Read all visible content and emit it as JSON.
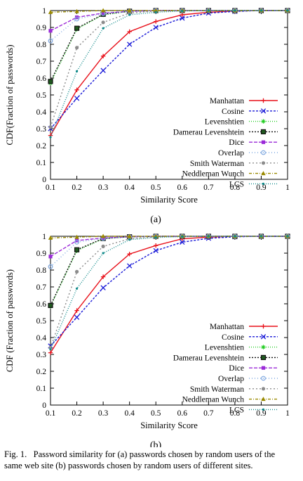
{
  "chart_data": [
    {
      "type": "line",
      "panel_label": "(a)",
      "xlabel": "Similarity Score",
      "ylabel": "CDF(Fraction of passwords)",
      "xlim": [
        0.1,
        1
      ],
      "ylim": [
        0,
        1
      ],
      "x": [
        0.1,
        0.2,
        0.3,
        0.4,
        0.5,
        0.6,
        0.7,
        0.8,
        0.9,
        1.0
      ],
      "xticks": [
        "0.1",
        "0.2",
        "0.3",
        "0.4",
        "0.5",
        "0.6",
        "0.7",
        "0.8",
        "0.9",
        "1"
      ],
      "yticks": [
        "0",
        "0.1",
        "0.2",
        "0.3",
        "0.4",
        "0.5",
        "0.6",
        "0.7",
        "0.8",
        "0.9",
        "1"
      ],
      "legend_position": "right",
      "series": [
        {
          "name": "Manhattan",
          "color": "#e8101a",
          "values": [
            0.26,
            0.53,
            0.73,
            0.875,
            0.935,
            0.975,
            0.99,
            0.997,
            1.0,
            1.0
          ]
        },
        {
          "name": "Cosine",
          "color": "#1a1ad8",
          "values": [
            0.3,
            0.48,
            0.645,
            0.8,
            0.9,
            0.955,
            0.985,
            0.995,
            1.0,
            1.0
          ]
        },
        {
          "name": "Levenshtien",
          "color": "#22cc22",
          "values": [
            0.57,
            0.89,
            0.975,
            0.995,
            1.0,
            1.0,
            1.0,
            1.0,
            1.0,
            1.0
          ]
        },
        {
          "name": "Damerau Levenshtein",
          "color": "#111111",
          "values": [
            0.58,
            0.895,
            0.978,
            0.996,
            1.0,
            1.0,
            1.0,
            1.0,
            1.0,
            1.0
          ]
        },
        {
          "name": "Dice",
          "color": "#9b2ad8",
          "values": [
            0.88,
            0.96,
            0.985,
            0.995,
            1.0,
            1.0,
            1.0,
            1.0,
            1.0,
            1.0
          ]
        },
        {
          "name": "Overlap",
          "color": "#7fa8e0",
          "values": [
            0.82,
            0.95,
            0.982,
            0.995,
            1.0,
            1.0,
            1.0,
            1.0,
            1.0,
            1.0
          ]
        },
        {
          "name": "Smith Waterman",
          "color": "#8c8c8c",
          "values": [
            0.31,
            0.78,
            0.93,
            0.985,
            0.997,
            1.0,
            1.0,
            1.0,
            1.0,
            1.0
          ]
        },
        {
          "name": "Neddleman Wunch",
          "color": "#9a8a00",
          "values": [
            0.99,
            0.995,
            1.0,
            1.0,
            1.0,
            1.0,
            1.0,
            1.0,
            1.0,
            1.0
          ]
        },
        {
          "name": "LCS",
          "color": "#0f8a8a",
          "values": [
            0.25,
            0.64,
            0.895,
            0.975,
            0.99,
            0.997,
            1.0,
            1.0,
            1.0,
            1.0
          ]
        }
      ]
    },
    {
      "type": "line",
      "panel_label": "(b)",
      "xlabel": "Similarity Score",
      "ylabel": "CDF (Fraction of passwords)",
      "xlim": [
        0.1,
        1
      ],
      "ylim": [
        0,
        1
      ],
      "x": [
        0.1,
        0.2,
        0.3,
        0.4,
        0.5,
        0.6,
        0.7,
        0.8,
        0.9,
        1.0
      ],
      "xticks": [
        "0.1",
        "0.2",
        "0.3",
        "0.4",
        "0.5",
        "0.6",
        "0.7",
        "0.8",
        "0.9",
        "1"
      ],
      "yticks": [
        "0",
        "0.1",
        "0.2",
        "0.3",
        "0.4",
        "0.5",
        "0.6",
        "0.7",
        "0.8",
        "0.9",
        "1"
      ],
      "legend_position": "right",
      "series": [
        {
          "name": "Manhattan",
          "color": "#e8101a",
          "values": [
            0.31,
            0.56,
            0.76,
            0.895,
            0.945,
            0.985,
            0.995,
            1.0,
            1.0,
            1.0
          ]
        },
        {
          "name": "Cosine",
          "color": "#1a1ad8",
          "values": [
            0.35,
            0.52,
            0.695,
            0.825,
            0.915,
            0.965,
            0.988,
            0.997,
            1.0,
            1.0
          ]
        },
        {
          "name": "Levenshtien",
          "color": "#22cc22",
          "values": [
            0.585,
            0.915,
            0.985,
            0.997,
            1.0,
            1.0,
            1.0,
            1.0,
            1.0,
            1.0
          ]
        },
        {
          "name": "Damerau Levenshtein",
          "color": "#111111",
          "values": [
            0.59,
            0.92,
            0.987,
            0.997,
            1.0,
            1.0,
            1.0,
            1.0,
            1.0,
            1.0
          ]
        },
        {
          "name": "Dice",
          "color": "#9b2ad8",
          "values": [
            0.88,
            0.975,
            0.99,
            0.997,
            1.0,
            1.0,
            1.0,
            1.0,
            1.0,
            1.0
          ]
        },
        {
          "name": "Overlap",
          "color": "#7fa8e0",
          "values": [
            0.82,
            0.965,
            0.987,
            0.997,
            1.0,
            1.0,
            1.0,
            1.0,
            1.0,
            1.0
          ]
        },
        {
          "name": "Smith Waterman",
          "color": "#8c8c8c",
          "values": [
            0.34,
            0.79,
            0.94,
            0.985,
            0.997,
            1.0,
            1.0,
            1.0,
            1.0,
            1.0
          ]
        },
        {
          "name": "Neddleman Wunch",
          "color": "#9a8a00",
          "values": [
            0.99,
            0.995,
            1.0,
            1.0,
            1.0,
            1.0,
            1.0,
            1.0,
            1.0,
            1.0
          ]
        },
        {
          "name": "LCS",
          "color": "#0f8a8a",
          "values": [
            0.33,
            0.69,
            0.9,
            0.98,
            0.993,
            0.998,
            1.0,
            1.0,
            1.0,
            1.0
          ]
        }
      ]
    }
  ],
  "caption": {
    "line1": "Fig. 1.   Password similarity for (a) passwords chosen by random users of the",
    "line2": "same web site (b) passwords chosen by random users of different sites."
  }
}
